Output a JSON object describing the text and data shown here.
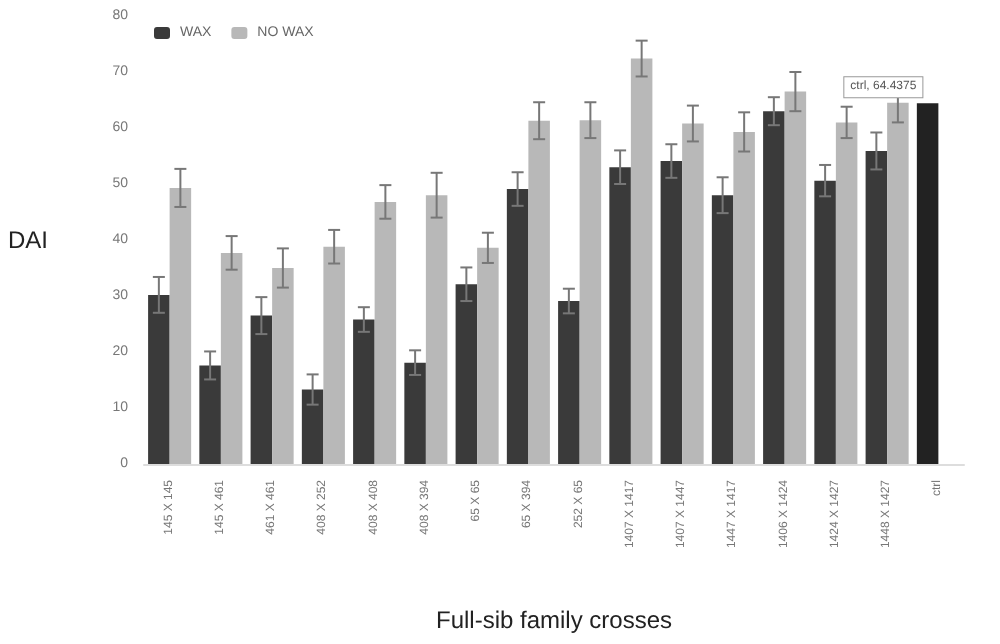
{
  "chart_data": {
    "type": "bar",
    "xlabel": "Full-sib family crosses",
    "ylabel": "DAI",
    "categories": [
      "145 X 145",
      "145 X 461",
      "461 X 461",
      "408 X 252",
      "408 X 408",
      "408 X 394",
      "65 X 65",
      "65 X 394",
      "252 X 65",
      "1407 X 1417",
      "1407 X 1447",
      "1447 X 1417",
      "1406 X 1424",
      "1424 X 1427",
      "1448 X 1427",
      "ctrl"
    ],
    "series": [
      {
        "name": "WAX",
        "color": "#3a3a3a",
        "colors": [
          "#3a3a3a",
          "#3a3a3a",
          "#3a3a3a",
          "#3a3a3a",
          "#3a3a3a",
          "#3a3a3a",
          "#3a3a3a",
          "#3a3a3a",
          "#3a3a3a",
          "#3a3a3a",
          "#3a3a3a",
          "#3a3a3a",
          "#3a3a3a",
          "#3a3a3a",
          "#3a3a3a",
          "#222222"
        ],
        "values": [
          30.2,
          17.6,
          26.5,
          13.3,
          25.8,
          18.1,
          32.1,
          49.1,
          29.1,
          53.0,
          54.1,
          48.0,
          63.0,
          50.6,
          55.9,
          64.4
        ],
        "errors": [
          3.2,
          2.5,
          3.3,
          2.7,
          2.2,
          2.2,
          3,
          3,
          2.2,
          3,
          3,
          3.2,
          2.5,
          2.8,
          3.3,
          null
        ]
      },
      {
        "name": "NO WAX",
        "color": "#b8b8b8",
        "values": [
          49.3,
          37.7,
          35.0,
          38.8,
          46.8,
          48.0,
          38.6,
          61.3,
          61.4,
          72.4,
          60.8,
          59.3,
          66.5,
          61.0,
          64.5,
          null
        ],
        "errors": [
          3.4,
          3,
          3.5,
          3,
          3,
          4,
          2.7,
          3.3,
          3.2,
          3.2,
          3.2,
          3.5,
          3.5,
          2.8,
          3.5,
          null
        ]
      }
    ],
    "annotations": [
      {
        "text": "ctrl, 64.4375",
        "x": "ctrl",
        "y": 64.4
      }
    ],
    "ylim": [
      0,
      80
    ],
    "yticks": [
      0,
      10,
      20,
      30,
      40,
      50,
      60,
      70,
      80
    ],
    "grid": false,
    "legend": "top left"
  }
}
